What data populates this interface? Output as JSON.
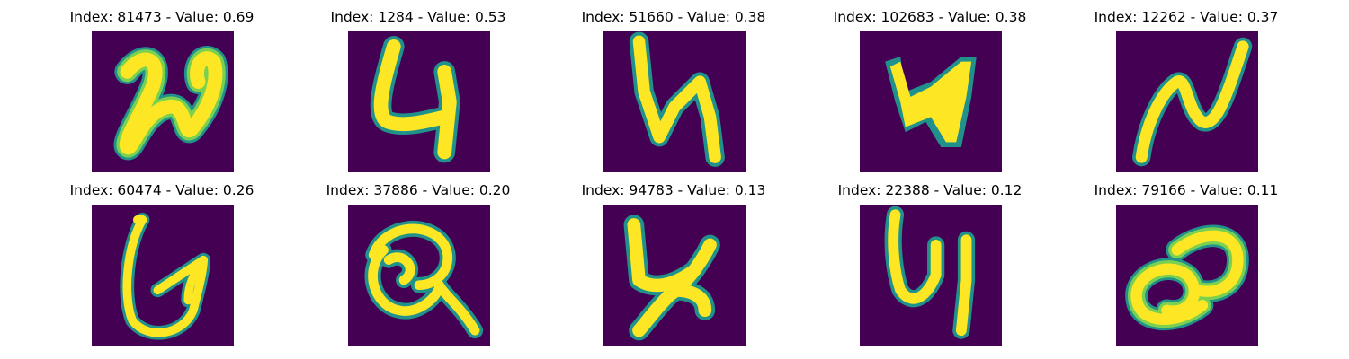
{
  "colors": {
    "background": "#440154",
    "edge": "#21918c",
    "mid": "#7ad151",
    "stroke": "#fde725"
  },
  "panels": [
    {
      "title": "Index: 81473 - Value: 0.69"
    },
    {
      "title": "Index: 1284 - Value: 0.53"
    },
    {
      "title": "Index: 51660 - Value: 0.38"
    },
    {
      "title": "Index: 102683 - Value: 0.38"
    },
    {
      "title": "Index: 12262 - Value: 0.37"
    },
    {
      "title": "Index: 60474 - Value: 0.26"
    },
    {
      "title": "Index: 37886 - Value: 0.20"
    },
    {
      "title": "Index: 94783 - Value: 0.13"
    },
    {
      "title": "Index: 22388 - Value: 0.12"
    },
    {
      "title": "Index: 79166 - Value: 0.11"
    }
  ]
}
